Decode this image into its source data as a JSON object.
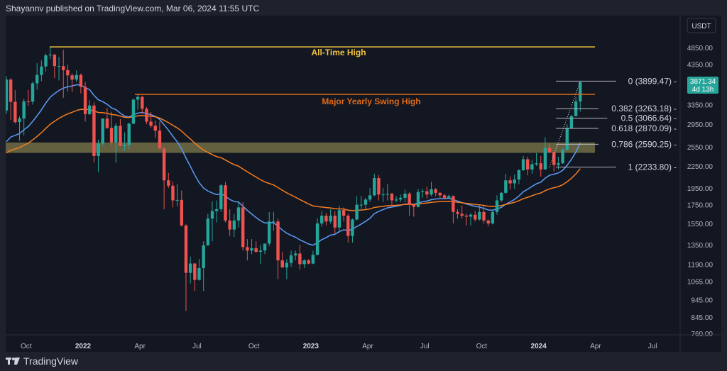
{
  "header": {
    "text": "Shayannv published on TradingView.com, Mar 06, 2024 11:55 UTC"
  },
  "footer": {
    "logo_text": "TradingView"
  },
  "price_axis": {
    "currency": "USDT",
    "labels": [
      "4850.00",
      "4350.00",
      "3350.00",
      "2950.00",
      "2550.00",
      "2250.00",
      "1950.00",
      "1750.00",
      "1550.00",
      "1350.00",
      "1190.00",
      "1065.00",
      "945.00",
      "845.00",
      "760.00"
    ],
    "last_price": "3871.34",
    "countdown": "4d 13h"
  },
  "time_axis": {
    "labels": [
      "Oct",
      "2022",
      "Apr",
      "Jul",
      "Oct",
      "2023",
      "Apr",
      "Jul",
      "Oct",
      "2024",
      "Apr",
      "Jul"
    ]
  },
  "annotations": {
    "ath_label": "All-Time High",
    "swing_label": "Major Yearly Swing High"
  },
  "colors": {
    "up": "#26a69a",
    "down": "#ef5350",
    "ma_fast": "#5b9cf6",
    "ma_slow": "#f57c1f",
    "ath": "#f0c43c",
    "swing": "#e06a17",
    "zone": "#a59d5a",
    "fib": "#b2b5be",
    "background": "#131722"
  },
  "chart_data": {
    "type": "candlestick",
    "title": "",
    "scale": "log",
    "ylim": [
      700,
      5000
    ],
    "grid": false,
    "timeframe": "1W",
    "horizontal_levels": [
      {
        "name": "All-Time High",
        "price": 4870
      },
      {
        "name": "Major Yearly Swing High",
        "price": 3580
      }
    ],
    "support_zone": [
      2450,
      2620
    ],
    "fibonacci": [
      {
        "ratio": "0",
        "price": "3899.47",
        "label": "0 (3899.47)"
      },
      {
        "ratio": "0.382",
        "price": "3263.18",
        "label": "0.382 (3263.18)"
      },
      {
        "ratio": "0.5",
        "price": "3066.64",
        "label": "0.5 (3066.64)"
      },
      {
        "ratio": "0.618",
        "price": "2870.09",
        "label": "0.618 (2870.09)"
      },
      {
        "ratio": "0.786",
        "price": "2590.25",
        "label": "0.786 (2590.25)"
      },
      {
        "ratio": "1",
        "price": "2233.80",
        "label": "1 (2233.80)"
      }
    ],
    "columns": [
      "open",
      "high",
      "low",
      "close"
    ],
    "candles": [
      [
        3225,
        4027,
        3150,
        3940
      ],
      [
        3940,
        3970,
        3030,
        3410
      ],
      [
        3410,
        3680,
        2960,
        2990
      ],
      [
        2990,
        3100,
        2650,
        3060
      ],
      [
        3060,
        3480,
        2740,
        3420
      ],
      [
        3420,
        3680,
        3320,
        3415
      ],
      [
        3415,
        3890,
        3350,
        3845
      ],
      [
        3845,
        4380,
        3690,
        4060
      ],
      [
        4060,
        4460,
        3900,
        4290
      ],
      [
        4290,
        4665,
        4150,
        4610
      ],
      [
        4610,
        4870,
        4500,
        4630
      ],
      [
        4630,
        4650,
        3980,
        4300
      ],
      [
        4300,
        4560,
        3920,
        4300
      ],
      [
        4300,
        4780,
        3500,
        4190
      ],
      [
        4190,
        4340,
        3640,
        4050
      ],
      [
        4050,
        4100,
        3640,
        3940
      ],
      [
        3940,
        4180,
        3880,
        4060
      ],
      [
        4060,
        4100,
        3600,
        3760
      ],
      [
        3760,
        3880,
        3000,
        3150
      ],
      [
        3150,
        3450,
        3130,
        3330
      ],
      [
        3330,
        3400,
        2300,
        2400
      ],
      [
        2400,
        2670,
        2160,
        2600
      ],
      [
        2600,
        3050,
        2560,
        3060
      ],
      [
        3060,
        3280,
        2860,
        2880
      ],
      [
        2880,
        3200,
        2580,
        2620
      ],
      [
        2620,
        2970,
        2300,
        2920
      ],
      [
        2920,
        3050,
        2560,
        2560
      ],
      [
        2560,
        2800,
        2480,
        2580
      ],
      [
        2580,
        2980,
        2510,
        2960
      ],
      [
        2960,
        3480,
        2950,
        3460
      ],
      [
        3460,
        3580,
        3240,
        3520
      ],
      [
        3520,
        3550,
        3160,
        3260
      ],
      [
        3260,
        3300,
        2950,
        3000
      ],
      [
        3000,
        3190,
        2880,
        2920
      ],
      [
        2920,
        3020,
        2700,
        2830
      ],
      [
        2830,
        3000,
        2520,
        2520
      ],
      [
        2520,
        2540,
        1700,
        2050
      ],
      [
        2050,
        2150,
        1950,
        1980
      ],
      [
        1980,
        2030,
        1720,
        1800
      ],
      [
        1800,
        2000,
        1730,
        1805
      ],
      [
        1805,
        1920,
        1520,
        1530
      ],
      [
        1530,
        1540,
        880,
        1125
      ],
      [
        1125,
        1250,
        1050,
        1195
      ],
      [
        1195,
        1200,
        1000,
        1075
      ],
      [
        1075,
        1230,
        1070,
        1160
      ],
      [
        1160,
        1380,
        1000,
        1345
      ],
      [
        1345,
        1650,
        1340,
        1600
      ],
      [
        1600,
        1790,
        1380,
        1680
      ],
      [
        1680,
        1800,
        1560,
        1700
      ],
      [
        1700,
        2000,
        1670,
        1985
      ],
      [
        1985,
        2030,
        1560,
        1580
      ],
      [
        1580,
        1700,
        1430,
        1490
      ],
      [
        1490,
        1650,
        1420,
        1580
      ],
      [
        1580,
        1790,
        1510,
        1720
      ],
      [
        1720,
        1780,
        1300,
        1330
      ],
      [
        1330,
        1400,
        1220,
        1300
      ],
      [
        1300,
        1400,
        1270,
        1320
      ],
      [
        1320,
        1380,
        1280,
        1290
      ],
      [
        1290,
        1350,
        1190,
        1300
      ],
      [
        1300,
        1340,
        1270,
        1360
      ],
      [
        1360,
        1670,
        1340,
        1570
      ],
      [
        1570,
        1670,
        1480,
        1570
      ],
      [
        1570,
        1600,
        1080,
        1220
      ],
      [
        1220,
        1290,
        1170,
        1165
      ],
      [
        1165,
        1230,
        1080,
        1200
      ],
      [
        1200,
        1300,
        1170,
        1260
      ],
      [
        1260,
        1300,
        1220,
        1275
      ],
      [
        1275,
        1350,
        1150,
        1190
      ],
      [
        1190,
        1230,
        1160,
        1220
      ],
      [
        1220,
        1230,
        1190,
        1195
      ],
      [
        1195,
        1300,
        1190,
        1265
      ],
      [
        1265,
        1600,
        1260,
        1550
      ],
      [
        1550,
        1680,
        1520,
        1630
      ],
      [
        1630,
        1660,
        1530,
        1570
      ],
      [
        1570,
        1700,
        1550,
        1630
      ],
      [
        1630,
        1680,
        1450,
        1510
      ],
      [
        1510,
        1740,
        1460,
        1690
      ],
      [
        1690,
        1720,
        1570,
        1630
      ],
      [
        1630,
        1650,
        1370,
        1430
      ],
      [
        1430,
        1600,
        1370,
        1590
      ],
      [
        1590,
        1850,
        1580,
        1750
      ],
      [
        1750,
        1850,
        1700,
        1750
      ],
      [
        1750,
        1830,
        1700,
        1810
      ],
      [
        1810,
        1950,
        1780,
        1860
      ],
      [
        1860,
        2140,
        1850,
        2080
      ],
      [
        2080,
        2120,
        1800,
        1870
      ],
      [
        1870,
        1950,
        1780,
        1870
      ],
      [
        1870,
        2000,
        1800,
        1880
      ],
      [
        1880,
        1890,
        1740,
        1800
      ],
      [
        1800,
        1850,
        1780,
        1810
      ],
      [
        1810,
        1870,
        1780,
        1830
      ],
      [
        1830,
        1930,
        1780,
        1880
      ],
      [
        1880,
        1900,
        1630,
        1750
      ],
      [
        1750,
        1750,
        1620,
        1725
      ],
      [
        1725,
        1940,
        1720,
        1900
      ],
      [
        1900,
        1940,
        1830,
        1910
      ],
      [
        1910,
        1970,
        1820,
        1870
      ],
      [
        1870,
        2030,
        1850,
        1935
      ],
      [
        1935,
        1950,
        1850,
        1890
      ],
      [
        1890,
        1900,
        1830,
        1860
      ],
      [
        1860,
        1880,
        1810,
        1830
      ],
      [
        1830,
        1870,
        1820,
        1850
      ],
      [
        1850,
        1860,
        1550,
        1670
      ],
      [
        1670,
        1700,
        1600,
        1650
      ],
      [
        1650,
        1740,
        1600,
        1630
      ],
      [
        1630,
        1650,
        1530,
        1620
      ],
      [
        1620,
        1660,
        1530,
        1640
      ],
      [
        1640,
        1680,
        1570,
        1590
      ],
      [
        1590,
        1750,
        1580,
        1670
      ],
      [
        1670,
        1750,
        1550,
        1580
      ],
      [
        1580,
        1590,
        1520,
        1550
      ],
      [
        1550,
        1690,
        1540,
        1670
      ],
      [
        1670,
        1860,
        1640,
        1800
      ],
      [
        1800,
        1900,
        1780,
        1890
      ],
      [
        1890,
        2140,
        1880,
        2050
      ],
      [
        2050,
        2100,
        1930,
        2010
      ],
      [
        2010,
        2130,
        1940,
        2060
      ],
      [
        2060,
        2200,
        2000,
        2190
      ],
      [
        2190,
        2400,
        2180,
        2350
      ],
      [
        2350,
        2390,
        2120,
        2200
      ],
      [
        2200,
        2340,
        2140,
        2275
      ],
      [
        2275,
        2445,
        2250,
        2290
      ],
      [
        2290,
        2400,
        2100,
        2200
      ],
      [
        2200,
        2710,
        2200,
        2530
      ],
      [
        2530,
        2600,
        2450,
        2460
      ],
      [
        2460,
        2470,
        2170,
        2265
      ],
      [
        2265,
        2390,
        2200,
        2290
      ],
      [
        2290,
        2530,
        2280,
        2500
      ],
      [
        2500,
        2950,
        2480,
        2880
      ],
      [
        2880,
        3130,
        2870,
        3110
      ],
      [
        3110,
        3520,
        3100,
        3420
      ],
      [
        3420,
        3900,
        3200,
        3871
      ]
    ]
  }
}
